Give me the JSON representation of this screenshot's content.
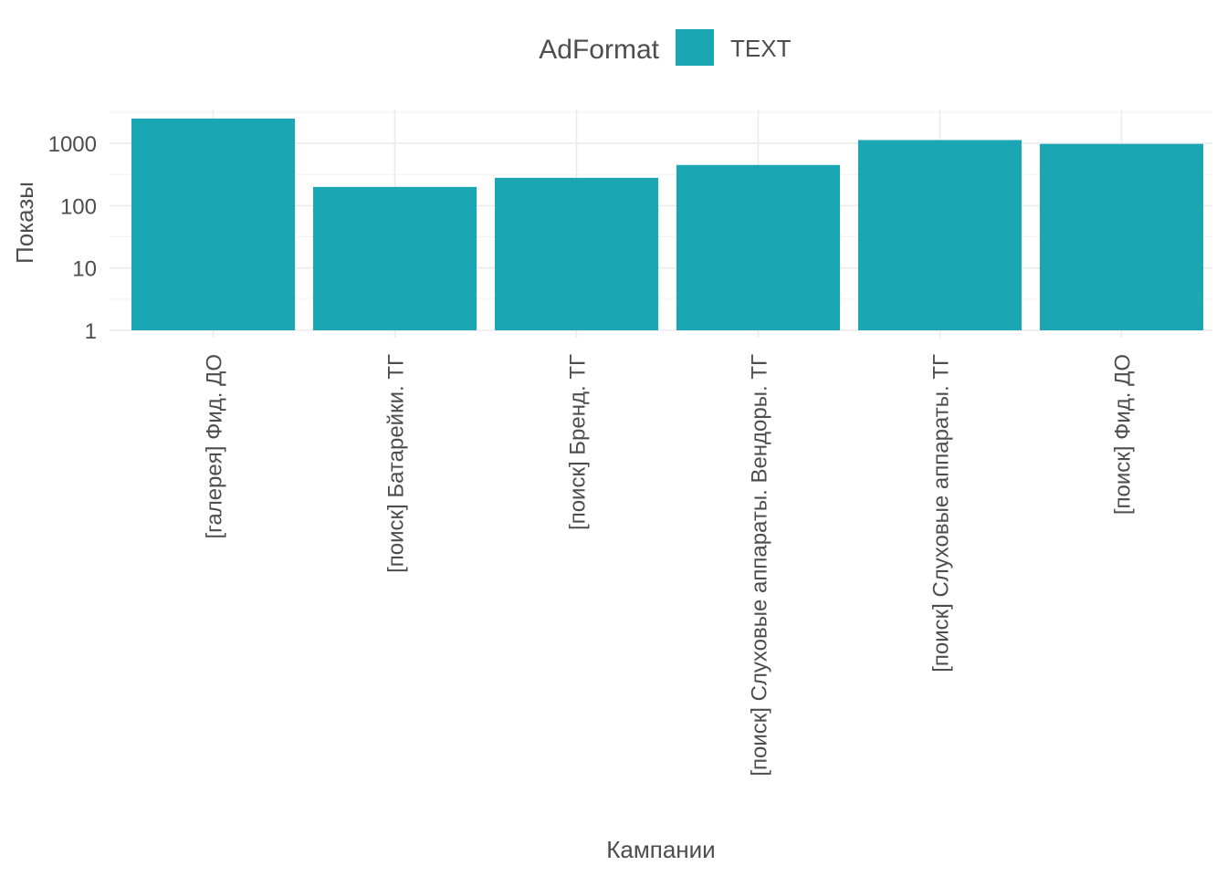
{
  "chart_data": {
    "type": "bar",
    "categories": [
      "[галерея] Фид. ДО",
      "[поиск] Батарейки. ТГ",
      "[поиск] Бренд. ТГ",
      "[поиск] Слуховые аппараты. Вендоры. ТГ",
      "[поиск] Слуховые аппараты. ТГ",
      "[поиск] Фид. ДО"
    ],
    "series": [
      {
        "name": "TEXT",
        "values": [
          2500,
          200,
          280,
          450,
          1130,
          980
        ]
      }
    ],
    "xlabel": "Кампании",
    "ylabel": "Показы",
    "yscale": "log10",
    "ylim": [
      1,
      4000
    ],
    "yticks": [
      1,
      10,
      100,
      1000
    ],
    "ytick_labels": [
      "1",
      "10",
      "100",
      "1000"
    ],
    "grid": true,
    "legend": {
      "title": "AdFormat",
      "position": "top"
    },
    "colors": {
      "bar": "#1AA7B3",
      "grid": "#ebebeb",
      "text": "#4d4d4d"
    }
  }
}
